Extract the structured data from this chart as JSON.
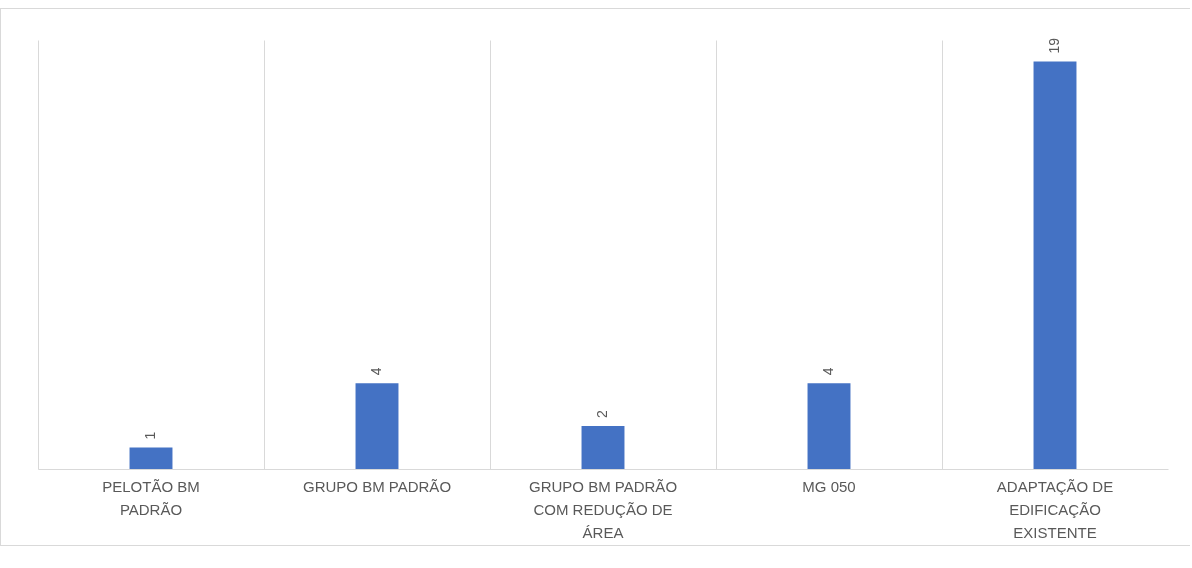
{
  "chart_data": {
    "type": "bar",
    "categories": [
      "PELOTÃO BM PADRÃO",
      "GRUPO BM PADRÃO",
      "GRUPO BM PADRÃO COM REDUÇÃO DE ÁREA",
      "MG 050",
      "ADAPTAÇÃO DE EDIFICAÇÃO EXISTENTE"
    ],
    "values": [
      1,
      4,
      2,
      4,
      19
    ],
    "color": "#4472c4",
    "data_labels": true,
    "grid": "x"
  }
}
